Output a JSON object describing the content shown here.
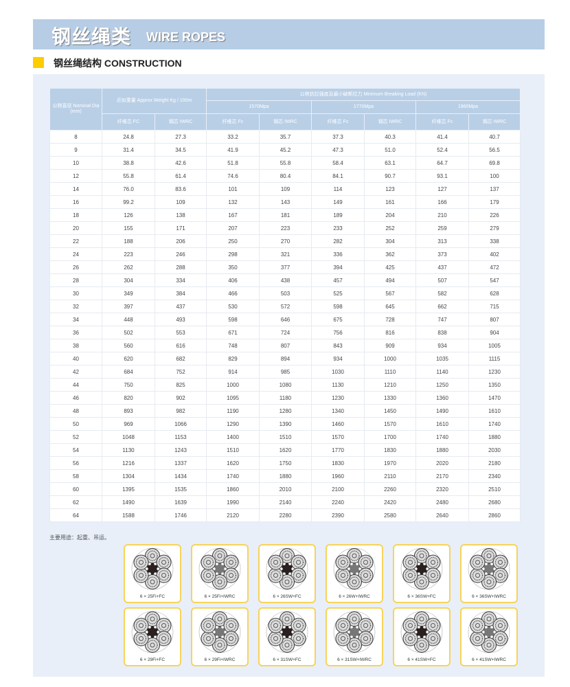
{
  "header": {
    "title_cn": "钢丝绳类",
    "title_en": "WIRE ROPES"
  },
  "section": {
    "title_cn": "钢丝绳结构",
    "title_en": "CONSTRUCTION"
  },
  "table": {
    "col_dia": "公称直径 Nominal Dia (mm)",
    "col_weight": "近似重量 Approx Weight Kg / 100m",
    "col_load": "公称抗拉强度及最小破断拉力 Minimum Breaking Load (KN)",
    "grades": [
      "1570Mpa",
      "1770Mpa",
      "1960Mpa"
    ],
    "sub": [
      "纤维芯 FC",
      "钢芯 IWRC",
      "纤维芯 Fc",
      "钢芯 IWRC",
      "纤维芯 Fc",
      "钢芯 IWRC",
      "纤维芯 Fc",
      "钢芯 IWRC"
    ],
    "rows": [
      [
        "8",
        "24.8",
        "27.3",
        "33.2",
        "35.7",
        "37.3",
        "40.3",
        "41.4",
        "40.7"
      ],
      [
        "9",
        "31.4",
        "34.5",
        "41.9",
        "45.2",
        "47.3",
        "51.0",
        "52.4",
        "56.5"
      ],
      [
        "10",
        "38.8",
        "42.6",
        "51.8",
        "55.8",
        "58.4",
        "63.1",
        "64.7",
        "69.8"
      ],
      [
        "12",
        "55.8",
        "61.4",
        "74.6",
        "80.4",
        "84.1",
        "90.7",
        "93.1",
        "100"
      ],
      [
        "14",
        "76.0",
        "83.6",
        "101",
        "109",
        "114",
        "123",
        "127",
        "137"
      ],
      [
        "16",
        "99.2",
        "109",
        "132",
        "143",
        "149",
        "161",
        "166",
        "179"
      ],
      [
        "18",
        "126",
        "138",
        "167",
        "181",
        "189",
        "204",
        "210",
        "226"
      ],
      [
        "20",
        "155",
        "171",
        "207",
        "223",
        "233",
        "252",
        "259",
        "279"
      ],
      [
        "22",
        "188",
        "206",
        "250",
        "270",
        "282",
        "304",
        "313",
        "338"
      ],
      [
        "24",
        "223",
        "246",
        "298",
        "321",
        "336",
        "362",
        "373",
        "402"
      ],
      [
        "26",
        "262",
        "288",
        "350",
        "377",
        "394",
        "425",
        "437",
        "472"
      ],
      [
        "28",
        "304",
        "334",
        "406",
        "438",
        "457",
        "494",
        "507",
        "547"
      ],
      [
        "30",
        "349",
        "384",
        "466",
        "503",
        "525",
        "567",
        "582",
        "628"
      ],
      [
        "32",
        "397",
        "437",
        "530",
        "572",
        "598",
        "645",
        "662",
        "715"
      ],
      [
        "34",
        "448",
        "493",
        "598",
        "646",
        "675",
        "728",
        "747",
        "807"
      ],
      [
        "36",
        "502",
        "553",
        "671",
        "724",
        "756",
        "816",
        "838",
        "904"
      ],
      [
        "38",
        "560",
        "616",
        "748",
        "807",
        "843",
        "909",
        "934",
        "1005"
      ],
      [
        "40",
        "620",
        "682",
        "829",
        "894",
        "934",
        "1000",
        "1035",
        "1115"
      ],
      [
        "42",
        "684",
        "752",
        "914",
        "985",
        "1030",
        "1110",
        "1140",
        "1230"
      ],
      [
        "44",
        "750",
        "825",
        "1000",
        "1080",
        "1130",
        "1210",
        "1250",
        "1350"
      ],
      [
        "46",
        "820",
        "902",
        "1095",
        "1180",
        "1230",
        "1330",
        "1360",
        "1470"
      ],
      [
        "48",
        "893",
        "982",
        "1190",
        "1280",
        "1340",
        "1450",
        "1490",
        "1610"
      ],
      [
        "50",
        "969",
        "1066",
        "1290",
        "1390",
        "1460",
        "1570",
        "1610",
        "1740"
      ],
      [
        "52",
        "1048",
        "1153",
        "1400",
        "1510",
        "1570",
        "1700",
        "1740",
        "1880"
      ],
      [
        "54",
        "1130",
        "1243",
        "1510",
        "1620",
        "1770",
        "1830",
        "1880",
        "2030"
      ],
      [
        "56",
        "1216",
        "1337",
        "1620",
        "1750",
        "1830",
        "1970",
        "2020",
        "2180"
      ],
      [
        "58",
        "1304",
        "1434",
        "1740",
        "1880",
        "1960",
        "2110",
        "2170",
        "2340"
      ],
      [
        "60",
        "1395",
        "1535",
        "1860",
        "2010",
        "2100",
        "2260",
        "2320",
        "2510"
      ],
      [
        "62",
        "1490",
        "1639",
        "1990",
        "2140",
        "2240",
        "2420",
        "2480",
        "2680"
      ],
      [
        "64",
        "1588",
        "1746",
        "2120",
        "2280",
        "2390",
        "2580",
        "2640",
        "2860"
      ]
    ]
  },
  "note": "主要用途：起重、吊运。",
  "ropes": [
    {
      "label": "6 × 25Fi+FC",
      "core": "fc"
    },
    {
      "label": "6 × 25Fi+IWRC",
      "core": "iwrc"
    },
    {
      "label": "6 × 26SW+FC",
      "core": "fc"
    },
    {
      "label": "6 × 26W+IWRC",
      "core": "iwrc"
    },
    {
      "label": "6 × 36SW+FC",
      "core": "fc"
    },
    {
      "label": "6 × 36SW+IWRC",
      "core": "iwrc"
    },
    {
      "label": "6 × 29Fi+FC",
      "core": "fc"
    },
    {
      "label": "6 × 29Fi+IWRC",
      "core": "iwrc"
    },
    {
      "label": "6 × 31SW+FC",
      "core": "fc"
    },
    {
      "label": "6 × 31SW+IWRC",
      "core": "iwrc"
    },
    {
      "label": "6 × 41SW+FC",
      "core": "fc"
    },
    {
      "label": "6 × 41SW+IWRC",
      "core": "iwrc"
    }
  ],
  "colors": {
    "band": "#b7cde6",
    "accent": "#ffcc00",
    "panel": "#e8eff9",
    "card_border": "#f7d35a"
  }
}
